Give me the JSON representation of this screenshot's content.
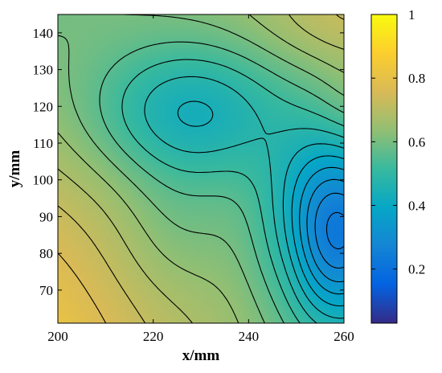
{
  "chart_data": {
    "type": "heatmap",
    "title": "",
    "xlabel": "x/mm",
    "ylabel": "y/mm",
    "xlim": [
      200,
      260
    ],
    "ylim": [
      61,
      145
    ],
    "x_ticks": [
      200,
      220,
      240,
      260
    ],
    "y_ticks": [
      70,
      80,
      90,
      100,
      110,
      120,
      130,
      140
    ],
    "colorbar": {
      "colormap": "parula",
      "range": [
        0.03,
        1
      ],
      "ticks": [
        0.2,
        0.4,
        0.6,
        0.8,
        1
      ],
      "tick_labels": [
        "0.2",
        "0.4",
        "0.6",
        "0.8",
        "1"
      ],
      "colors": [
        "#352a87",
        "#0363e1",
        "#1485d4",
        "#06a7c6",
        "#38b99e",
        "#92bf73",
        "#d9ba56",
        "#fcce2e",
        "#f9fb0e"
      ]
    },
    "contour_lines": true,
    "contour_color": "#000000",
    "field_features": [
      {
        "kind": "minimum",
        "x": 260,
        "y": 86,
        "value": 0.18
      },
      {
        "kind": "plateau",
        "x": 232,
        "y": 118,
        "value": 0.47
      },
      {
        "kind": "maximum",
        "x": 200,
        "y": 61,
        "value": 0.78
      },
      {
        "kind": "high",
        "x": 200,
        "y": 145,
        "value": 0.66
      },
      {
        "kind": "mid",
        "x": 260,
        "y": 145,
        "value": 0.6
      }
    ]
  }
}
